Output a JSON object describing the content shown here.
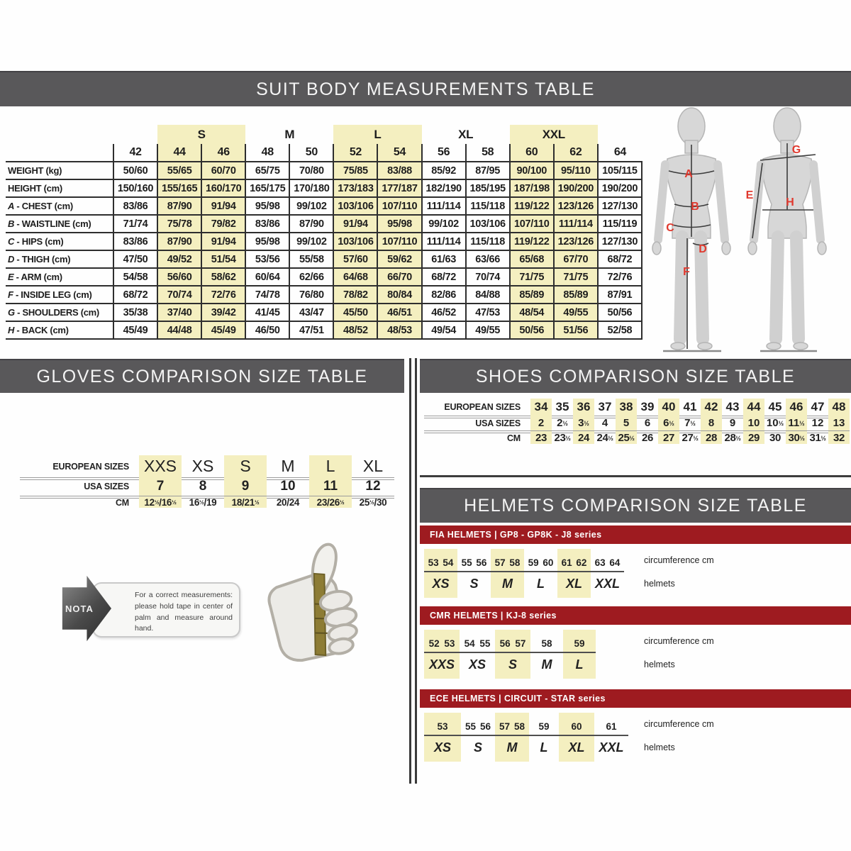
{
  "colors": {
    "highlight_yellow": "#f4efc0",
    "bar_gray": "#59585a",
    "band_red": "#9e1b20",
    "marker_red": "#e0392e"
  },
  "suit": {
    "title": "SUIT BODY MEASUREMENTS TABLE",
    "size_groups": [
      {
        "label": "S",
        "highlight": true
      },
      {
        "label": "M",
        "highlight": false
      },
      {
        "label": "L",
        "highlight": true
      },
      {
        "label": "XL",
        "highlight": false
      },
      {
        "label": "XXL",
        "highlight": true
      }
    ],
    "sizes": [
      "42",
      "44",
      "46",
      "48",
      "50",
      "52",
      "54",
      "56",
      "58",
      "60",
      "62",
      "64"
    ],
    "highlight_columns": [
      1,
      2,
      5,
      6,
      9,
      10
    ],
    "rows": [
      {
        "letter": "",
        "name": "WEIGHT (kg)",
        "values": [
          "50/60",
          "55/65",
          "60/70",
          "65/75",
          "70/80",
          "75/85",
          "83/88",
          "85/92",
          "87/95",
          "90/100",
          "95/110",
          "105/115"
        ]
      },
      {
        "letter": "",
        "name": "HEIGHT (cm)",
        "values": [
          "150/160",
          "155/165",
          "160/170",
          "165/175",
          "170/180",
          "173/183",
          "177/187",
          "182/190",
          "185/195",
          "187/198",
          "190/200",
          "190/200"
        ]
      },
      {
        "letter": "A",
        "name": "CHEST (cm)",
        "values": [
          "83/86",
          "87/90",
          "91/94",
          "95/98",
          "99/102",
          "103/106",
          "107/110",
          "111/114",
          "115/118",
          "119/122",
          "123/126",
          "127/130"
        ]
      },
      {
        "letter": "B",
        "name": "WAISTLINE (cm)",
        "values": [
          "71/74",
          "75/78",
          "79/82",
          "83/86",
          "87/90",
          "91/94",
          "95/98",
          "99/102",
          "103/106",
          "107/110",
          "111/114",
          "115/119"
        ]
      },
      {
        "letter": "C",
        "name": "HIPS (cm)",
        "values": [
          "83/86",
          "87/90",
          "91/94",
          "95/98",
          "99/102",
          "103/106",
          "107/110",
          "111/114",
          "115/118",
          "119/122",
          "123/126",
          "127/130"
        ]
      },
      {
        "letter": "D",
        "name": "THIGH (cm)",
        "values": [
          "47/50",
          "49/52",
          "51/54",
          "53/56",
          "55/58",
          "57/60",
          "59/62",
          "61/63",
          "63/66",
          "65/68",
          "67/70",
          "68/72"
        ]
      },
      {
        "letter": "E",
        "name": "ARM (cm)",
        "values": [
          "54/58",
          "56/60",
          "58/62",
          "60/64",
          "62/66",
          "64/68",
          "66/70",
          "68/72",
          "70/74",
          "71/75",
          "71/75",
          "72/76"
        ]
      },
      {
        "letter": "F",
        "name": "INSIDE LEG (cm)",
        "values": [
          "68/72",
          "70/74",
          "72/76",
          "74/78",
          "76/80",
          "78/82",
          "80/84",
          "82/86",
          "84/88",
          "85/89",
          "85/89",
          "87/91"
        ]
      },
      {
        "letter": "G",
        "name": "SHOULDERS (cm)",
        "values": [
          "35/38",
          "37/40",
          "39/42",
          "41/45",
          "43/47",
          "45/50",
          "46/51",
          "46/52",
          "47/53",
          "48/54",
          "49/55",
          "50/56"
        ]
      },
      {
        "letter": "H",
        "name": "BACK (cm)",
        "values": [
          "45/49",
          "44/48",
          "45/49",
          "46/50",
          "47/51",
          "48/52",
          "48/53",
          "49/54",
          "49/55",
          "50/56",
          "51/56",
          "52/58"
        ]
      }
    ]
  },
  "figures": {
    "letters": [
      "A",
      "B",
      "C",
      "D",
      "E",
      "F",
      "G",
      "H"
    ]
  },
  "gloves": {
    "title": "GLOVES COMPARISON SIZE TABLE",
    "row_labels": [
      "EUROPEAN SIZES",
      "USA SIZES",
      "CM"
    ],
    "european": [
      "XXS",
      "XS",
      "S",
      "M",
      "L",
      "XL"
    ],
    "usa": [
      "7",
      "8",
      "9",
      "10",
      "11",
      "12"
    ],
    "cm": [
      "12½/16½",
      "16½/19",
      "18/21½",
      "20/24",
      "23/26½",
      "25½/30"
    ],
    "highlight_columns": [
      0,
      2,
      4
    ],
    "nota": {
      "label": "NOTA",
      "text": "For a correct measurements: please hold tape in center of palm and measure around hand."
    }
  },
  "shoes": {
    "title": "SHOES COMPARISON SIZE TABLE",
    "row_labels": [
      "EUROPEAN SIZES",
      "USA SIZES",
      "CM"
    ],
    "european": [
      "34",
      "35",
      "36",
      "37",
      "38",
      "39",
      "40",
      "41",
      "42",
      "43",
      "44",
      "45",
      "46",
      "47",
      "48"
    ],
    "usa": [
      "2",
      "2½",
      "3½",
      "4",
      "5",
      "6",
      "6½",
      "7½",
      "8",
      "9",
      "10",
      "10½",
      "11½",
      "12",
      "13"
    ],
    "cm": [
      "23",
      "23½",
      "24",
      "24½",
      "25½",
      "26",
      "27",
      "27½",
      "28",
      "28½",
      "29",
      "30",
      "30½",
      "31½",
      "32"
    ],
    "highlight_columns": [
      0,
      2,
      4,
      6,
      8,
      10,
      12,
      14
    ]
  },
  "helmets": {
    "title": "HELMETS COMPARISON SIZE TABLE",
    "circumference_label": "circumference cm",
    "sizes_label": "helmets",
    "groups": [
      {
        "id": "fia",
        "band": "FIA HELMETS | GP8 - GP8K - J8 series",
        "cells": [
          {
            "numbers": [
              "53",
              "54"
            ],
            "size": "XS",
            "highlight": true
          },
          {
            "numbers": [
              "55",
              "56"
            ],
            "size": "S",
            "highlight": false
          },
          {
            "numbers": [
              "57",
              "58"
            ],
            "size": "M",
            "highlight": true
          },
          {
            "numbers": [
              "59",
              "60"
            ],
            "size": "L",
            "highlight": false
          },
          {
            "numbers": [
              "61",
              "62"
            ],
            "size": "XL",
            "highlight": true
          },
          {
            "numbers": [
              "63",
              "64"
            ],
            "size": "XXL",
            "highlight": false
          }
        ]
      },
      {
        "id": "cmr",
        "band": "CMR HELMETS | KJ-8 series",
        "cells": [
          {
            "numbers": [
              "52",
              "53"
            ],
            "size": "XXS",
            "highlight": true
          },
          {
            "numbers": [
              "54",
              "55"
            ],
            "size": "XS",
            "highlight": false
          },
          {
            "numbers": [
              "56",
              "57"
            ],
            "size": "S",
            "highlight": true
          },
          {
            "numbers": [
              "58"
            ],
            "size": "M",
            "highlight": false
          },
          {
            "numbers": [
              "59"
            ],
            "size": "L",
            "highlight": true
          }
        ]
      },
      {
        "id": "ece",
        "band": "ECE HELMETS | CIRCUIT - STAR series",
        "cells": [
          {
            "numbers": [
              "53"
            ],
            "size": "XS",
            "highlight": true
          },
          {
            "numbers": [
              "55",
              "56"
            ],
            "size": "S",
            "highlight": false
          },
          {
            "numbers": [
              "57",
              "58"
            ],
            "size": "M",
            "highlight": true
          },
          {
            "numbers": [
              "59"
            ],
            "size": "L",
            "highlight": false
          },
          {
            "numbers": [
              "60"
            ],
            "size": "XL",
            "highlight": true
          },
          {
            "numbers": [
              "61"
            ],
            "size": "XXL",
            "highlight": false
          }
        ]
      }
    ]
  }
}
